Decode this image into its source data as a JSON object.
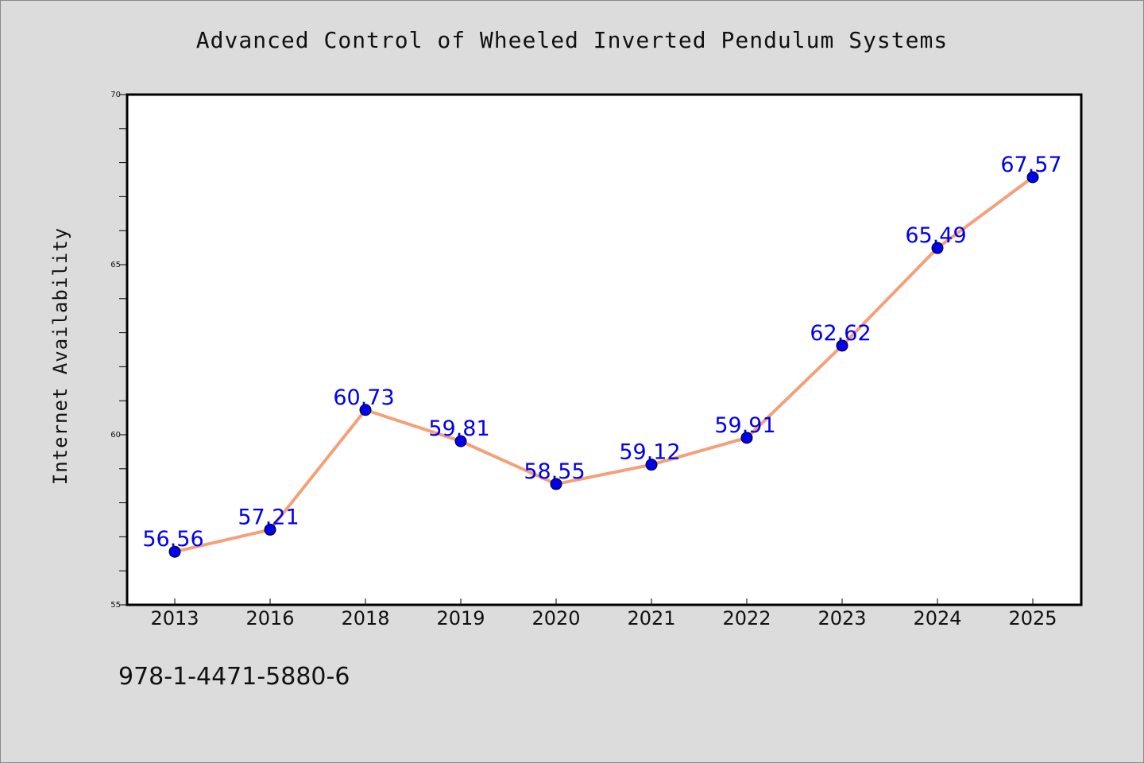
{
  "page": {
    "title": "Advanced Control of Wheeled Inverted Pendulum Systems",
    "footer_text": "978-1-4471-5880-6"
  },
  "chart_data": {
    "type": "line",
    "title": "Advanced Control of Wheeled Inverted Pendulum Systems",
    "xlabel": "",
    "ylabel": "Internet Availability",
    "categories": [
      "2013",
      "2016",
      "2018",
      "2019",
      "2020",
      "2021",
      "2022",
      "2023",
      "2024",
      "2025"
    ],
    "series": [
      {
        "values": [
          56.56,
          57.21,
          60.73,
          59.81,
          58.55,
          59.12,
          59.91,
          62.62,
          65.49,
          67.57
        ],
        "line_color": "#f4a07a",
        "marker_color": "#0000ee",
        "label_color": "#0000ee"
      }
    ],
    "data_labels": [
      "56.56",
      "57.21",
      "60.73",
      "59.81",
      "58.55",
      "59.12",
      "59.91",
      "62.62",
      "65.49",
      "67.57"
    ],
    "ylim": [
      55,
      70
    ],
    "y_major_ticks": [
      "55",
      "60",
      "65",
      "70"
    ],
    "y_minor_step": 1,
    "grid": false,
    "legend": "none",
    "background": "#dcdcdc",
    "plot_background": "#ffffff"
  }
}
